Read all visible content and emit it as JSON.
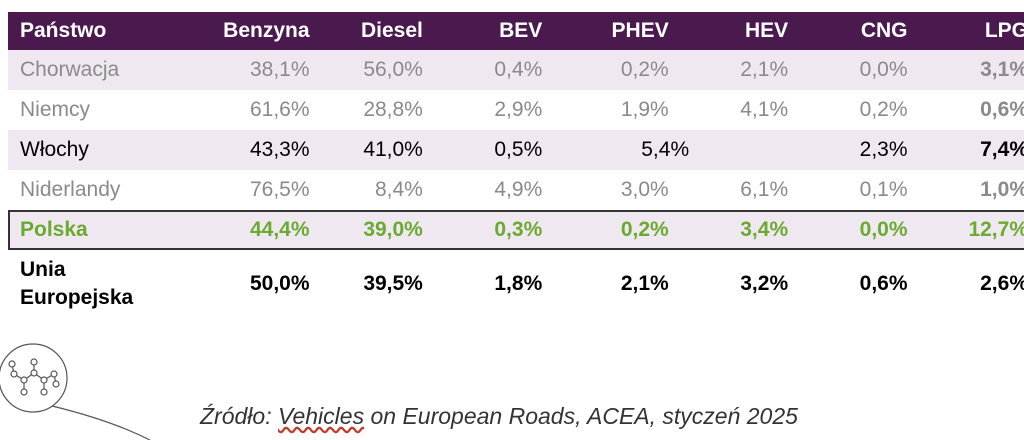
{
  "chart_data": {
    "type": "table",
    "columns": [
      "Państwo",
      "Benzyna",
      "Diesel",
      "BEV",
      "PHEV",
      "HEV",
      "CNG",
      "LPG"
    ],
    "rows": [
      {
        "country": "Chorwacja",
        "values": [
          "38,1%",
          "56,0%",
          "0,4%",
          "0,2%",
          "2,1%",
          "0,0%",
          "3,1%"
        ]
      },
      {
        "country": "Niemcy",
        "values": [
          "61,6%",
          "28,8%",
          "2,9%",
          "1,9%",
          "4,1%",
          "0,2%",
          "0,6%"
        ]
      },
      {
        "country": "Włochy",
        "values": [
          "43,3%",
          "41,0%",
          "0,5%",
          "5,4%",
          "2,3%",
          "7,4%"
        ],
        "phev_hev_merged": "5,4%"
      },
      {
        "country": "Niderlandy",
        "values": [
          "76,5%",
          "8,4%",
          "4,9%",
          "3,0%",
          "6,1%",
          "0,1%",
          "1,0%"
        ]
      },
      {
        "country": "Polska",
        "values": [
          "44,4%",
          "39,0%",
          "0,3%",
          "0,2%",
          "3,4%",
          "0,0%",
          "12,7%"
        ],
        "highlighted": true
      },
      {
        "country": "Unia Europejska",
        "values": [
          "50,0%",
          "39,5%",
          "1,8%",
          "2,1%",
          "3,2%",
          "0,6%",
          "2,6%"
        ]
      }
    ]
  },
  "table": {
    "header": [
      "Państwo",
      "Benzyna",
      "Diesel",
      "BEV",
      "PHEV",
      "HEV",
      "CNG",
      "LPG"
    ],
    "r1": [
      "Chorwacja",
      "38,1%",
      "56,0%",
      "0,4%",
      "0,2%",
      "2,1%",
      "0,0%",
      "3,1%"
    ],
    "r2": [
      "Niemcy",
      "61,6%",
      "28,8%",
      "2,9%",
      "1,9%",
      "4,1%",
      "0,2%",
      "0,6%"
    ],
    "r3": [
      "Włochy",
      "43,3%",
      "41,0%",
      "0,5%",
      "5,4%",
      "2,3%",
      "7,4%"
    ],
    "r4": [
      "Niderlandy",
      "76,5%",
      "8,4%",
      "4,9%",
      "3,0%",
      "6,1%",
      "0,1%",
      "1,0%"
    ],
    "r5": [
      "Polska",
      "44,4%",
      "39,0%",
      "0,3%",
      "0,2%",
      "3,4%",
      "0,0%",
      "12,7%"
    ],
    "r6": [
      "Unia",
      "Europejska",
      "50,0%",
      "39,5%",
      "1,8%",
      "2,1%",
      "3,2%",
      "0,6%",
      "2,6%"
    ]
  },
  "source": {
    "prefix": "Źródło: ",
    "link": "Vehicles",
    "rest": " on European Roads, ACEA, styczeń 2025"
  },
  "colors": {
    "header_bg": "#4a1a4f",
    "band": "#f0e8f1",
    "highlight": "#6aaa2e"
  },
  "icons": {
    "decoration": "molecule-icon"
  }
}
